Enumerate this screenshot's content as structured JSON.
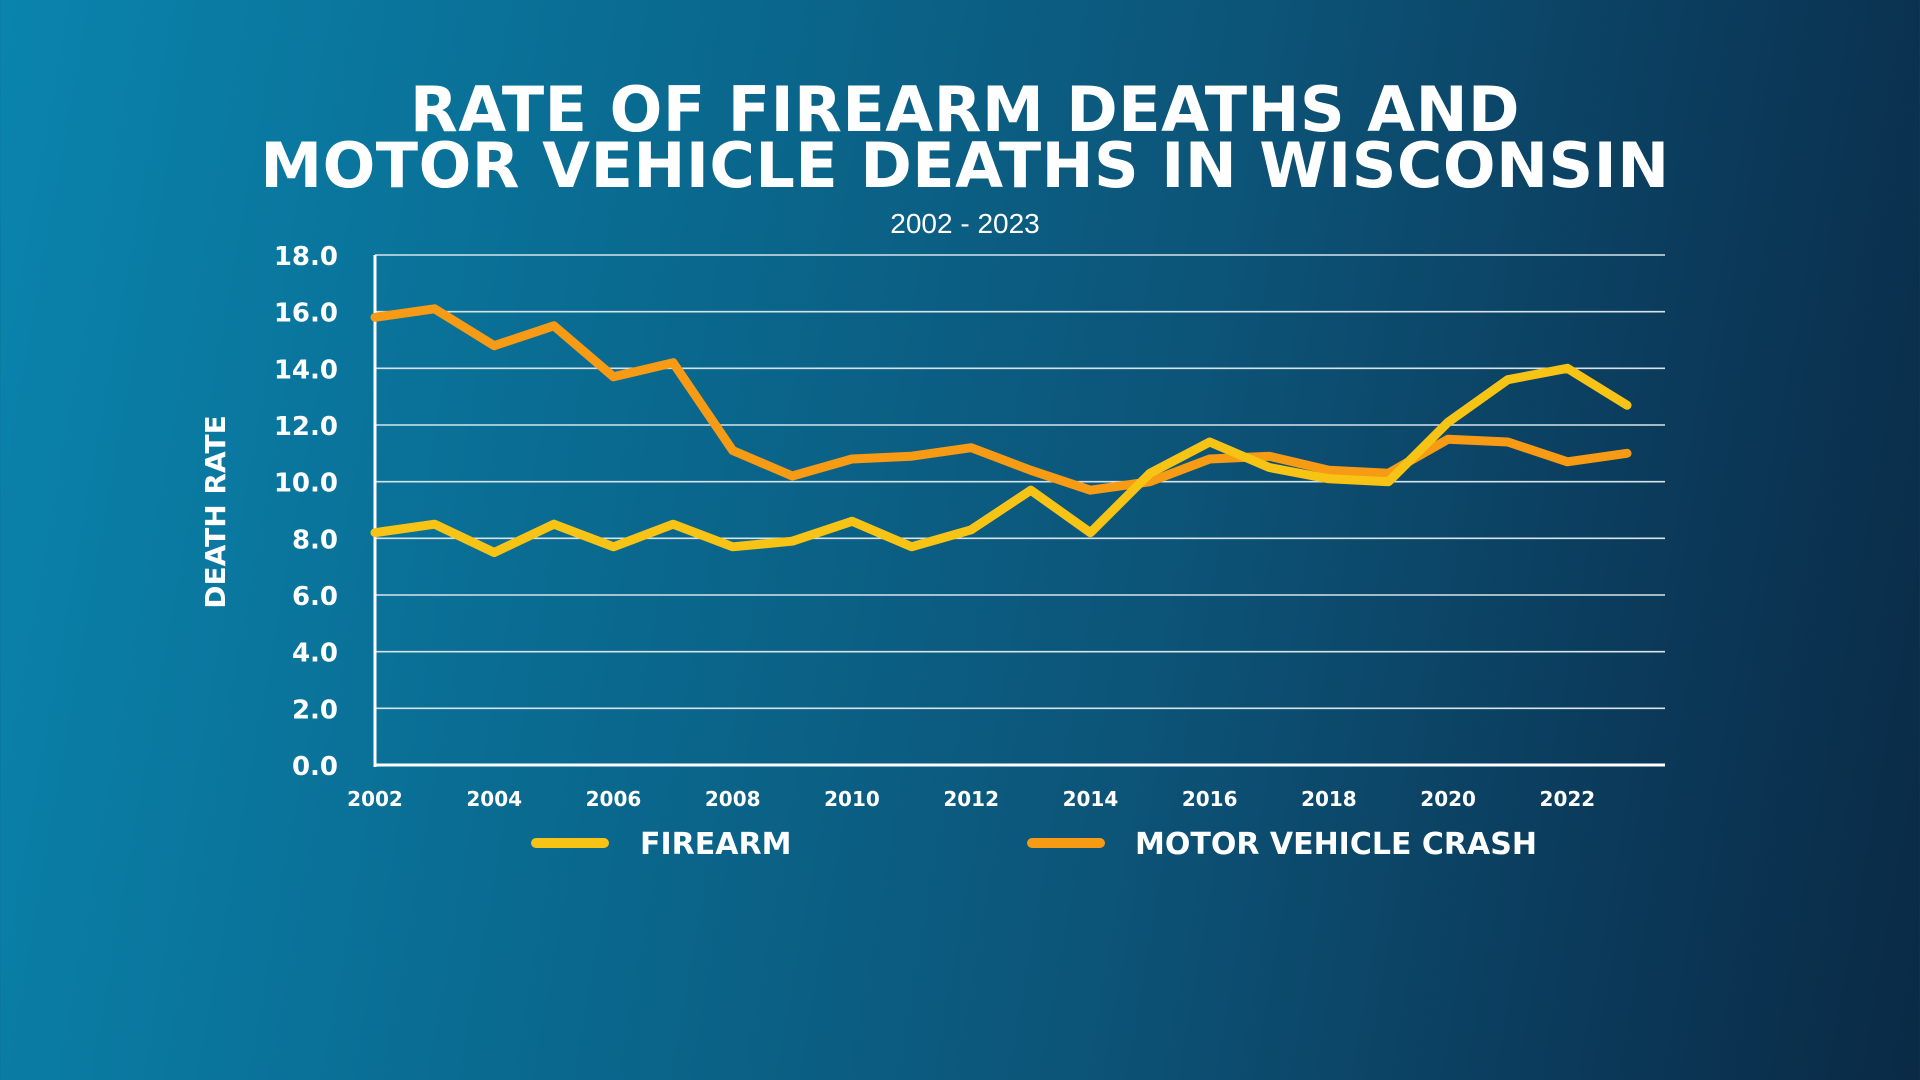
{
  "chart_data": {
    "type": "line",
    "title_line1": "RATE OF FIREARM DEATHS AND",
    "title_line2": "MOTOR VEHICLE DEATHS IN WISCONSIN",
    "subtitle": "2002 - 2023",
    "ylabel": "DEATH RATE",
    "xlabel": "",
    "ylim": [
      0,
      18
    ],
    "yticks": [
      "0.0",
      "2.0",
      "4.0",
      "6.0",
      "8.0",
      "10.0",
      "12.0",
      "14.0",
      "16.0",
      "18.0"
    ],
    "xticks": [
      "2002",
      "2004",
      "2006",
      "2008",
      "2010",
      "2012",
      "2014",
      "2016",
      "2018",
      "2020",
      "2022"
    ],
    "x": [
      2002,
      2003,
      2004,
      2005,
      2006,
      2007,
      2008,
      2009,
      2010,
      2011,
      2012,
      2013,
      2014,
      2015,
      2016,
      2017,
      2018,
      2019,
      2020,
      2021,
      2022,
      2023
    ],
    "series": [
      {
        "name": "FIREARM",
        "color": "#f7c416",
        "values": [
          8.2,
          8.5,
          7.5,
          8.5,
          7.7,
          8.5,
          7.7,
          7.9,
          8.6,
          7.7,
          8.3,
          9.7,
          8.2,
          10.3,
          11.4,
          10.5,
          10.1,
          10.0,
          12.1,
          13.6,
          14.0,
          12.7
        ]
      },
      {
        "name": "MOTOR VEHICLE CRASH",
        "color": "#f79a14",
        "values": [
          15.8,
          16.1,
          14.8,
          15.5,
          13.7,
          14.2,
          11.1,
          10.2,
          10.8,
          10.9,
          11.2,
          10.4,
          9.7,
          10.0,
          10.8,
          10.9,
          10.4,
          10.3,
          11.5,
          11.4,
          10.7,
          11.0
        ]
      }
    ],
    "legend": "bottom"
  }
}
